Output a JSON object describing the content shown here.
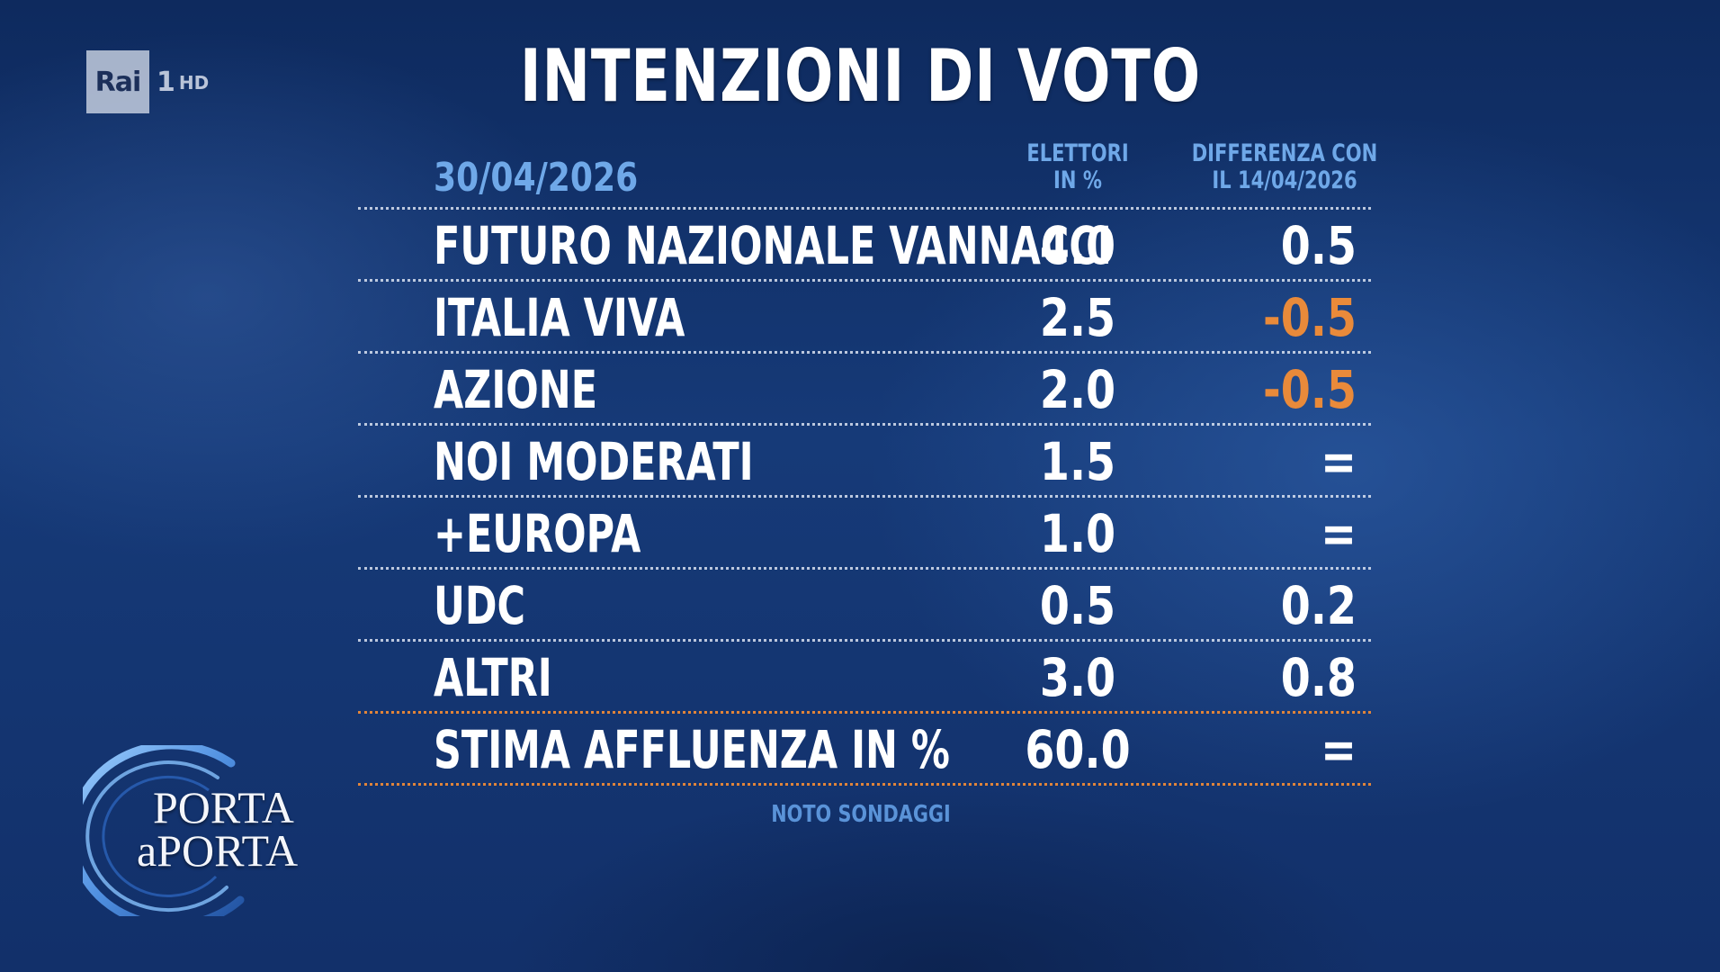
{
  "broadcaster": {
    "logo_text": "Rai",
    "channel": "1",
    "quality": "HD"
  },
  "title": "INTENZIONI DI VOTO",
  "table": {
    "date": "30/04/2026",
    "col_votes_line1": "ELETTORI",
    "col_votes_line2": "IN %",
    "col_diff_line1": "DIFFERENZA CON",
    "col_diff_line2": "IL 14/04/2026",
    "rows": [
      {
        "party": "FUTURO NAZIONALE VANNACCI",
        "value": "4.0",
        "diff": "0.5"
      },
      {
        "party": "ITALIA VIVA",
        "value": "2.5",
        "diff": "-0.5"
      },
      {
        "party": "AZIONE",
        "value": "2.0",
        "diff": "-0.5"
      },
      {
        "party": "NOI MODERATI",
        "value": "1.5",
        "diff": "="
      },
      {
        "party": "+EUROPA",
        "value": "1.0",
        "diff": "="
      },
      {
        "party": "UDC",
        "value": "0.5",
        "diff": "0.2"
      },
      {
        "party": "ALTRI",
        "value": "3.0",
        "diff": "0.8"
      }
    ],
    "turnout": {
      "label": "STIMA AFFLUENZA IN %",
      "value": "60.0",
      "diff": "="
    }
  },
  "source": "NOTO SONDAGGI",
  "show": {
    "line1": "PORTA",
    "line2": "aPORTA"
  },
  "colors": {
    "background": "#163a78",
    "header_blue": "#6fa8e8",
    "negative": "#e98a3a",
    "divider_orange": "#e0843a"
  }
}
